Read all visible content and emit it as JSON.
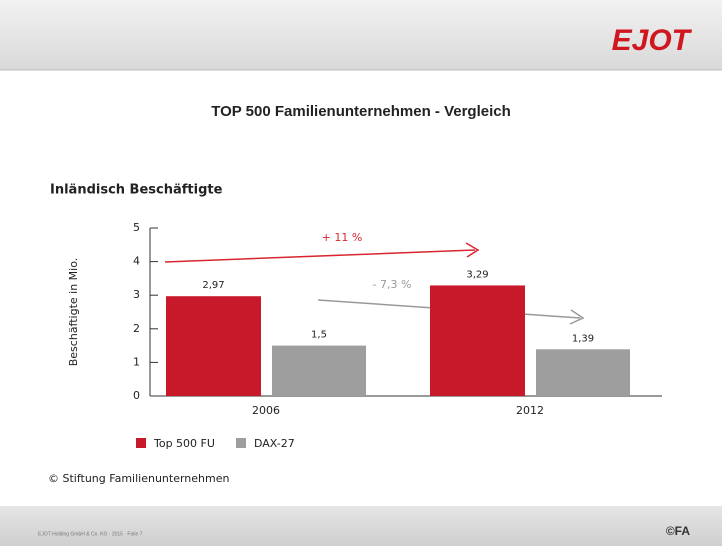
{
  "logo": "EJOT",
  "footer": {
    "text": "EJOT Holding GmbH & Co. KG · 2015 · Folie 7",
    "badge": "©FA"
  },
  "chart_data": {
    "type": "bar",
    "title": "TOP 500 Familienunternehmen - Vergleich",
    "subtitle": "Inländisch Beschäftigte",
    "y_label": "Beschäftigte in Mio.",
    "categories": [
      "2006",
      "2012"
    ],
    "series": [
      {
        "name": "Top 500 FU",
        "color": "#c8192b",
        "values": [
          2.97,
          3.29
        ],
        "value_labels": [
          "2,97",
          "3,29"
        ]
      },
      {
        "name": "DAX-27",
        "color": "#9e9e9e",
        "values": [
          1.5,
          1.39
        ],
        "value_labels": [
          "1,5",
          "1,39"
        ]
      }
    ],
    "ylim": [
      0,
      5
    ],
    "yticks": [
      0,
      1,
      2,
      3,
      4,
      5
    ],
    "grid": false,
    "annotations": [
      "+ 11 %",
      "- 7,3 %"
    ],
    "source": "© Stiftung Familienunternehmen"
  }
}
